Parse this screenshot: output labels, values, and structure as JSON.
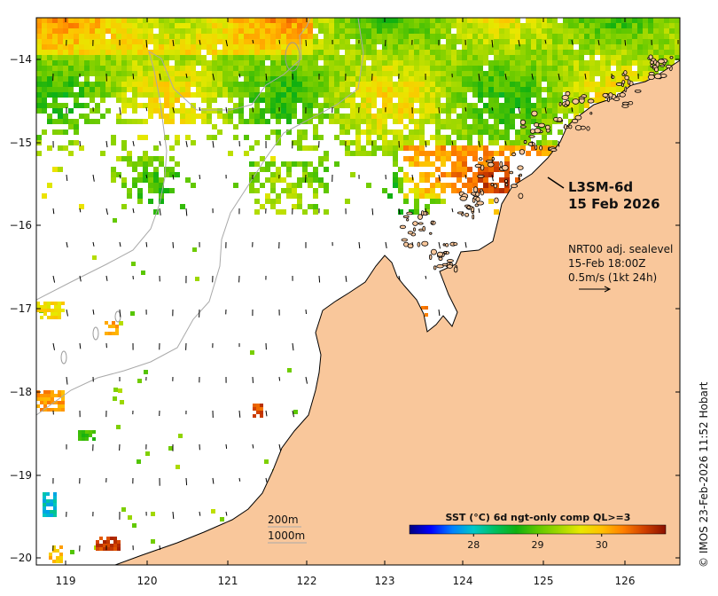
{
  "map": {
    "product_label": "L3SM-6d",
    "product_date": "15 Feb 2026",
    "current_source": "NRT00 adj. sealevel",
    "current_time": "15-Feb 18:00Z",
    "current_scale": "0.5m/s (1kt 24h)",
    "contour_shallow": "200m",
    "contour_deep": "1000m",
    "credit": "© IMOS 23-Feb-2026 11:52 Hobart",
    "colors": {
      "land": "#f9c79b",
      "nodata": "#ffffff",
      "isobath": "#a9a9a9",
      "coast": "#000000"
    }
  },
  "axes": {
    "lon_ticks": [
      "119",
      "120",
      "121",
      "122",
      "123",
      "124",
      "125",
      "126"
    ],
    "lat_ticks": [
      "−14",
      "−15",
      "−16",
      "−17",
      "−18",
      "−19",
      "−20"
    ],
    "lon_range": [
      118.7,
      126.9
    ],
    "lat_range": [
      -20.1,
      -13.5
    ]
  },
  "colorbar": {
    "title": "SST (°C) 6d ngt-only comp QL>=3",
    "ticks": [
      "28",
      "29",
      "30"
    ],
    "range": [
      27.0,
      31.0
    ],
    "tick_values": [
      28,
      29,
      30
    ],
    "colormap": [
      "#00007f",
      "#0000ff",
      "#0080ff",
      "#00c8c8",
      "#00c060",
      "#10b010",
      "#60c800",
      "#a0d800",
      "#e8e800",
      "#ffc000",
      "#ff8000",
      "#d04000",
      "#8b1000"
    ]
  },
  "sst_patches": [
    {
      "region": "north-belt-west",
      "temp": 29.8
    },
    {
      "region": "north-belt-central",
      "temp": 29.2
    },
    {
      "region": "north-belt-east",
      "temp": 29.5
    },
    {
      "region": "kimberley-inner",
      "temp": 29.0
    },
    {
      "region": "offshore-central",
      "temp": 28.9
    },
    {
      "region": "bonaparte-edge",
      "temp": 30.1
    },
    {
      "region": "southwest-cold",
      "temp": 27.9
    },
    {
      "region": "southwest-warm",
      "temp": 30.6
    }
  ]
}
